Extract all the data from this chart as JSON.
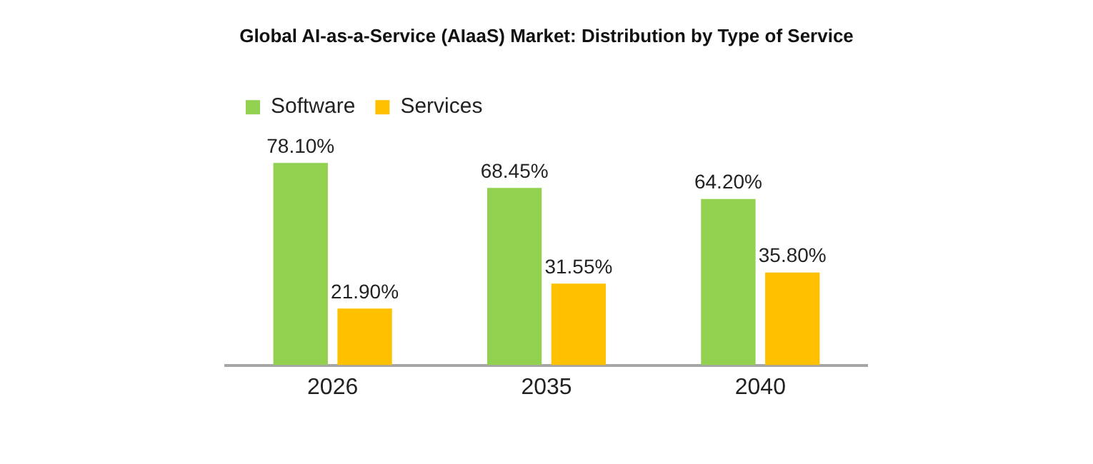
{
  "chart_data": {
    "type": "bar",
    "title": "Global AI-as-a-Service (AIaaS) Market: Distribution by Type of Service",
    "categories": [
      "2026",
      "2035",
      "2040"
    ],
    "series": [
      {
        "name": "Software",
        "color": "#92d050",
        "values": [
          78.1,
          68.45,
          64.2
        ],
        "value_labels": [
          "78.10%",
          "68.45%",
          "64.20%"
        ]
      },
      {
        "name": "Services",
        "color": "#ffc000",
        "values": [
          21.9,
          31.55,
          35.8
        ],
        "value_labels": [
          "21.90%",
          "31.55%",
          "35.80%"
        ]
      }
    ],
    "legend": "top left",
    "grid": false
  }
}
